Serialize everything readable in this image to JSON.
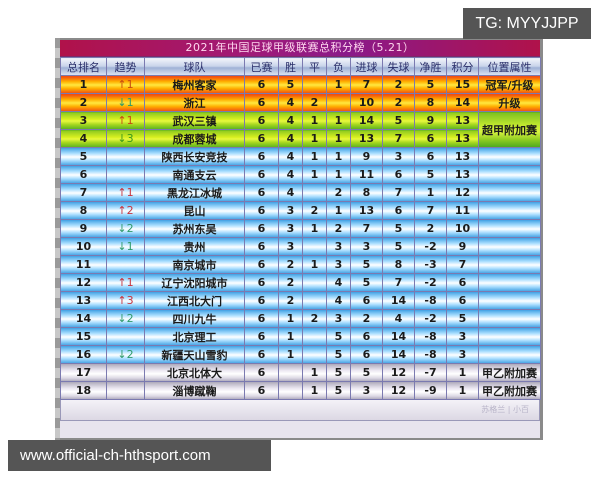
{
  "watermark_top": "TG: MYYJJPP",
  "watermark_bottom": "www.official-ch-hthsport.com",
  "table": {
    "title": "2021年中国足球甲级联赛总积分榜（5.21）",
    "columns": [
      "总排名",
      "趋势",
      "球队",
      "已赛",
      "胜",
      "平",
      "负",
      "进球",
      "失球",
      "净胜",
      "积分",
      "位置属性"
    ],
    "rows": [
      {
        "rank": "1",
        "trend": "↑1",
        "trend_dir": "up",
        "team": "梅州客家",
        "played": "6",
        "won": "5",
        "drawn": "",
        "lost": "1",
        "gf": "7",
        "ga": "2",
        "gd": "5",
        "pts": "15",
        "attr": "冠军/升级",
        "zone": "orange"
      },
      {
        "rank": "2",
        "trend": "↓1",
        "trend_dir": "down",
        "team": "浙江",
        "played": "6",
        "won": "4",
        "drawn": "2",
        "lost": "",
        "gf": "10",
        "ga": "2",
        "gd": "8",
        "pts": "14",
        "attr": "升级",
        "zone": "orange"
      },
      {
        "rank": "3",
        "trend": "↑1",
        "trend_dir": "up",
        "team": "武汉三镇",
        "played": "6",
        "won": "4",
        "drawn": "1",
        "lost": "1",
        "gf": "14",
        "ga": "5",
        "gd": "9",
        "pts": "13",
        "attr": "超甲附加赛",
        "zone": "green"
      },
      {
        "rank": "4",
        "trend": "↓3",
        "trend_dir": "down",
        "team": "成都蓉城",
        "played": "6",
        "won": "4",
        "drawn": "1",
        "lost": "1",
        "gf": "13",
        "ga": "7",
        "gd": "6",
        "pts": "13",
        "attr": "",
        "zone": "green"
      },
      {
        "rank": "5",
        "trend": "",
        "trend_dir": "",
        "team": "陕西长安竞技",
        "played": "6",
        "won": "4",
        "drawn": "1",
        "lost": "1",
        "gf": "9",
        "ga": "3",
        "gd": "6",
        "pts": "13",
        "attr": "",
        "zone": "blue"
      },
      {
        "rank": "6",
        "trend": "",
        "trend_dir": "",
        "team": "南通支云",
        "played": "6",
        "won": "4",
        "drawn": "1",
        "lost": "1",
        "gf": "11",
        "ga": "6",
        "gd": "5",
        "pts": "13",
        "attr": "",
        "zone": "blue"
      },
      {
        "rank": "7",
        "trend": "↑1",
        "trend_dir": "up",
        "team": "黑龙江冰城",
        "played": "6",
        "won": "4",
        "drawn": "",
        "lost": "2",
        "gf": "8",
        "ga": "7",
        "gd": "1",
        "pts": "12",
        "attr": "",
        "zone": "blue"
      },
      {
        "rank": "8",
        "trend": "↑2",
        "trend_dir": "up",
        "team": "昆山",
        "played": "6",
        "won": "3",
        "drawn": "2",
        "lost": "1",
        "gf": "13",
        "ga": "6",
        "gd": "7",
        "pts": "11",
        "attr": "",
        "zone": "blue"
      },
      {
        "rank": "9",
        "trend": "↓2",
        "trend_dir": "down",
        "team": "苏州东吴",
        "played": "6",
        "won": "3",
        "drawn": "1",
        "lost": "2",
        "gf": "7",
        "ga": "5",
        "gd": "2",
        "pts": "10",
        "attr": "",
        "zone": "blue"
      },
      {
        "rank": "10",
        "trend": "↓1",
        "trend_dir": "down",
        "team": "贵州",
        "played": "6",
        "won": "3",
        "drawn": "",
        "lost": "3",
        "gf": "3",
        "ga": "5",
        "gd": "-2",
        "pts": "9",
        "attr": "",
        "zone": "blue"
      },
      {
        "rank": "11",
        "trend": "",
        "trend_dir": "",
        "team": "南京城市",
        "played": "6",
        "won": "2",
        "drawn": "1",
        "lost": "3",
        "gf": "5",
        "ga": "8",
        "gd": "-3",
        "pts": "7",
        "attr": "",
        "zone": "blue"
      },
      {
        "rank": "12",
        "trend": "↑1",
        "trend_dir": "up",
        "team": "辽宁沈阳城市",
        "played": "6",
        "won": "2",
        "drawn": "",
        "lost": "4",
        "gf": "5",
        "ga": "7",
        "gd": "-2",
        "pts": "6",
        "attr": "",
        "zone": "blue"
      },
      {
        "rank": "13",
        "trend": "↑3",
        "trend_dir": "up",
        "team": "江西北大门",
        "played": "6",
        "won": "2",
        "drawn": "",
        "lost": "4",
        "gf": "6",
        "ga": "14",
        "gd": "-8",
        "pts": "6",
        "attr": "",
        "zone": "blue"
      },
      {
        "rank": "14",
        "trend": "↓2",
        "trend_dir": "down",
        "team": "四川九牛",
        "played": "6",
        "won": "1",
        "drawn": "2",
        "lost": "3",
        "gf": "2",
        "ga": "4",
        "gd": "-2",
        "pts": "5",
        "attr": "",
        "zone": "blue"
      },
      {
        "rank": "15",
        "trend": "",
        "trend_dir": "",
        "team": "北京理工",
        "played": "6",
        "won": "1",
        "drawn": "",
        "lost": "5",
        "gf": "6",
        "ga": "14",
        "gd": "-8",
        "pts": "3",
        "attr": "",
        "zone": "blue"
      },
      {
        "rank": "16",
        "trend": "↓2",
        "trend_dir": "down",
        "team": "新疆天山雪豹",
        "played": "6",
        "won": "1",
        "drawn": "",
        "lost": "5",
        "gf": "6",
        "ga": "14",
        "gd": "-8",
        "pts": "3",
        "attr": "",
        "zone": "blue"
      },
      {
        "rank": "17",
        "trend": "",
        "trend_dir": "",
        "team": "北京北体大",
        "played": "6",
        "won": "",
        "drawn": "1",
        "lost": "5",
        "gf": "5",
        "ga": "12",
        "gd": "-7",
        "pts": "1",
        "attr": "甲乙附加赛",
        "zone": "gray"
      },
      {
        "rank": "18",
        "trend": "",
        "trend_dir": "",
        "team": "淄博蹴鞠",
        "played": "6",
        "won": "",
        "drawn": "1",
        "lost": "5",
        "gf": "3",
        "ga": "12",
        "gd": "-9",
        "pts": "1",
        "attr": "甲乙附加赛",
        "zone": "gray"
      }
    ],
    "footer_mark": "苏格兰 | 小百"
  },
  "colors": {
    "title_bar": "#a01a78",
    "title_text": "#ffd7ef",
    "promotion_zone": "#ffb000",
    "playoff_zone": "#c8ec30",
    "mid_zone": "#aee0ff",
    "relegation_playoff_zone": "#ece8f2",
    "trend_up": "#c8343c",
    "trend_down": "#2e9a6a"
  }
}
